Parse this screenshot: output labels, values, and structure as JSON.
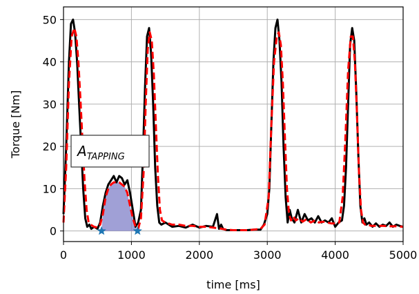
{
  "chart_data": {
    "type": "line",
    "xlabel": "time [ms]",
    "ylabel": "Torque [Nm]",
    "xlim": [
      0,
      5000
    ],
    "ylim": [
      -2.5,
      53
    ],
    "xticks": [
      0,
      1000,
      2000,
      3000,
      4000,
      5000
    ],
    "yticks": [
      0,
      10,
      20,
      30,
      40,
      50
    ],
    "grid": true,
    "annotation": {
      "base": "A",
      "sub": "TAPPING"
    },
    "series": [
      {
        "style": "measured",
        "color": "#000000",
        "x": [
          0,
          40,
          80,
          110,
          140,
          170,
          200,
          230,
          260,
          290,
          320,
          350,
          380,
          410,
          450,
          500,
          540,
          580,
          620,
          660,
          700,
          740,
          780,
          820,
          860,
          900,
          940,
          980,
          1020,
          1060,
          1100,
          1140,
          1170,
          1200,
          1230,
          1260,
          1290,
          1320,
          1350,
          1380,
          1410,
          1440,
          1500,
          1600,
          1700,
          1800,
          1900,
          2000,
          2100,
          2200,
          2260,
          2290,
          2320,
          2350,
          2400,
          2500,
          2600,
          2700,
          2800,
          2900,
          2950,
          3000,
          3030,
          3060,
          3090,
          3120,
          3150,
          3180,
          3210,
          3240,
          3270,
          3300,
          3330,
          3360,
          3400,
          3450,
          3500,
          3550,
          3600,
          3650,
          3700,
          3750,
          3800,
          3850,
          3900,
          3950,
          4000,
          4050,
          4100,
          4130,
          4160,
          4190,
          4220,
          4250,
          4280,
          4310,
          4340,
          4370,
          4400,
          4430,
          4460,
          4500,
          4550,
          4600,
          4650,
          4700,
          4750,
          4800,
          4850,
          4900,
          4950,
          5000
        ],
        "y": [
          4,
          20,
          40,
          49,
          50,
          47,
          40,
          30,
          20,
          10,
          3,
          1,
          1.5,
          0.5,
          1,
          0.5,
          2,
          6,
          9,
          11,
          12,
          13,
          11.5,
          13,
          12.5,
          11,
          12,
          9,
          5,
          1,
          2,
          5,
          18,
          34,
          46,
          48,
          42,
          30,
          15,
          6,
          2,
          1.5,
          2,
          1,
          1.2,
          0.8,
          1.5,
          0.8,
          1.2,
          1,
          4,
          0.5,
          1.5,
          0.5,
          0.2,
          0.2,
          0.2,
          0.2,
          0.3,
          0.3,
          1.5,
          4,
          10,
          25,
          40,
          48,
          50,
          45,
          35,
          20,
          8,
          2,
          5,
          3,
          2,
          5,
          2,
          4,
          2.5,
          3,
          2,
          3.5,
          2,
          2.5,
          2,
          3,
          1,
          2,
          2.5,
          6,
          15,
          30,
          44,
          48,
          45,
          33,
          18,
          6,
          2,
          3,
          1.5,
          2,
          1,
          1.8,
          1,
          1.5,
          1.2,
          2,
          1,
          1.5,
          1.2,
          1
        ]
      },
      {
        "style": "fitted",
        "color": "#ff0000",
        "x": [
          0,
          40,
          80,
          120,
          160,
          190,
          220,
          250,
          280,
          310,
          340,
          370,
          400,
          450,
          500,
          540,
          580,
          620,
          660,
          700,
          740,
          780,
          820,
          860,
          900,
          940,
          980,
          1020,
          1060,
          1100,
          1140,
          1180,
          1210,
          1240,
          1270,
          1300,
          1330,
          1360,
          1390,
          1420,
          1450,
          1500,
          1600,
          1700,
          1800,
          1900,
          2000,
          2100,
          2200,
          2300,
          2400,
          2500,
          2600,
          2700,
          2800,
          2900,
          2960,
          3020,
          3060,
          3100,
          3140,
          3170,
          3200,
          3230,
          3260,
          3290,
          3320,
          3350,
          3380,
          3420,
          3470,
          3520,
          3580,
          3640,
          3700,
          3760,
          3820,
          3880,
          3940,
          4000,
          4060,
          4110,
          4150,
          4190,
          4230,
          4260,
          4290,
          4320,
          4350,
          4380,
          4410,
          4440,
          4480,
          4530,
          4600,
          4700,
          4800,
          4900,
          5000
        ],
        "y": [
          2,
          15,
          35,
          46,
          48,
          46,
          40,
          31,
          21,
          12,
          5,
          2,
          1.5,
          1,
          0.8,
          1.5,
          4,
          8,
          10,
          11,
          11.5,
          11.5,
          11.5,
          11,
          10.5,
          9,
          6,
          3,
          1,
          0.5,
          3,
          14,
          30,
          43,
          47,
          45,
          37,
          25,
          13,
          5,
          2.5,
          2,
          1.5,
          1.5,
          1.2,
          1.2,
          1,
          1,
          0.8,
          0.6,
          0.3,
          0.2,
          0.2,
          0.2,
          0.3,
          0.5,
          1.5,
          8,
          25,
          40,
          46,
          47,
          44,
          35,
          22,
          10,
          4,
          2.5,
          3.5,
          2.5,
          3,
          2.2,
          2.8,
          2,
          2.5,
          2,
          2.2,
          2,
          1.8,
          1.8,
          2,
          8,
          22,
          38,
          46,
          46,
          40,
          28,
          14,
          5,
          2,
          1.5,
          1.5,
          1.2,
          1.2,
          1.2,
          1.1,
          1.1,
          1
        ]
      },
      {
        "style": "tapping-area",
        "color": "#8080c8",
        "x": [
          560,
          580,
          620,
          660,
          700,
          740,
          780,
          820,
          860,
          900,
          940,
          980,
          1020,
          1060,
          1090
        ],
        "y": [
          0,
          4,
          8,
          10,
          11,
          11.5,
          11.5,
          11.5,
          11,
          10.5,
          9,
          6,
          3,
          1,
          0
        ]
      },
      {
        "style": "markers",
        "color": "#1f77b4",
        "x": [
          560,
          1090
        ],
        "y": [
          0,
          0
        ]
      }
    ]
  }
}
